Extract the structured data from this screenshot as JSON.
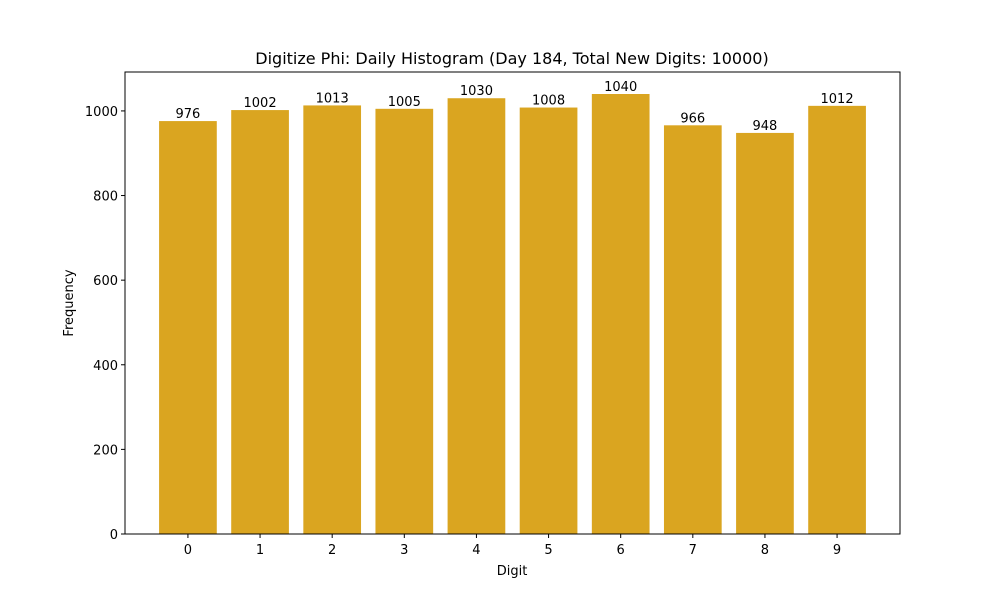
{
  "chart_data": {
    "type": "bar",
    "title": "Digitize Phi: Daily Histogram (Day 184, Total New Digits: 10000)",
    "xlabel": "Digit",
    "ylabel": "Frequency",
    "categories": [
      "0",
      "1",
      "2",
      "3",
      "4",
      "5",
      "6",
      "7",
      "8",
      "9"
    ],
    "values": [
      976,
      1002,
      1013,
      1005,
      1030,
      1008,
      1040,
      966,
      948,
      1012
    ],
    "bar_labels": [
      "976",
      "1002",
      "1013",
      "1005",
      "1030",
      "1008",
      "1040",
      "966",
      "948",
      "1012"
    ],
    "ylim": [
      0,
      1092
    ],
    "yticks": [
      0,
      200,
      400,
      600,
      800,
      1000
    ],
    "ytick_labels": [
      "0",
      "200",
      "400",
      "600",
      "800",
      "1000"
    ],
    "grid": false,
    "legend": null,
    "bar_color": "#DAA520"
  }
}
